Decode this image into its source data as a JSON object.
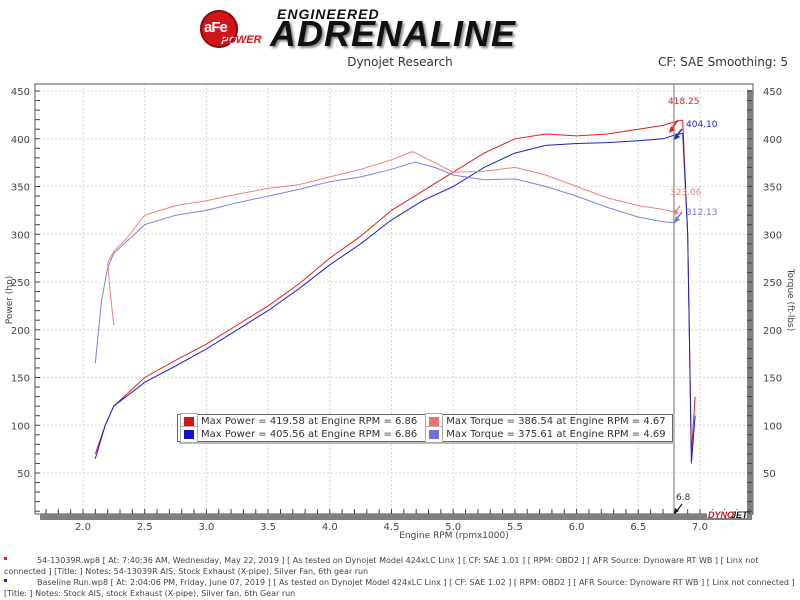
{
  "header": {
    "brand_logo": "aFe POWER",
    "brand_tag": "ENGINEERED",
    "brand_title": "ADRENALINE",
    "subtitle": "Dynojet Research",
    "correction": "CF: SAE Smoothing: 5",
    "watermark": "DYNOJET"
  },
  "colors": {
    "run1_power": "#e02020",
    "run1_torque": "#f08080",
    "run2_power": "#2020d0",
    "run2_torque": "#8080e0",
    "grid": "#d8d8d8",
    "axis_bar": "#808080"
  },
  "legend": [
    {
      "swatch": "#dd1111",
      "text": "Max Power = 419.58 at Engine RPM = 6.86"
    },
    {
      "swatch": "#f07070",
      "text": "Max Torque = 386.54 at Engine RPM = 4.67"
    },
    {
      "swatch": "#1111cc",
      "text": "Max Power = 405.56 at Engine RPM = 6.86"
    },
    {
      "swatch": "#7070dd",
      "text": "Max Torque = 375.61 at Engine RPM = 4.69"
    }
  ],
  "annotations": {
    "peak_power_run1": "418.25",
    "peak_power_run2": "404.10",
    "torque_at_cursor_run1": "323.06",
    "torque_at_cursor_run2": "312.13",
    "cursor_rpm": "6.8"
  },
  "footer": [
    {
      "color": "#e02020",
      "text": "54-13039R.wp8 [ At: 7:40:36 AM, Wednesday, May 22, 2019 ] [ As tested on Dynojet Model 424xLC Linx ] [ CF: SAE 1.01 ] [ RPM: OBD2 ] [ AFR Source: Dynoware RT WB ] [ Linx not connected ] [Title: ]  Notes: 54-13039R AIS, Stock Exhaust (X-pipe), Silver Fan, 6th gear run"
    },
    {
      "color": "#2020d0",
      "text": "Baseline Run.wp8 [ At: 2:04:06 PM, Friday, June 07, 2019 ] [ As tested on Dynojet Model 424xLC Linx ] [ CF: SAE 1.02 ] [ RPM: OBD2 ] [ AFR Source: Dynoware RT WB ] [ Linx not connected ] [Title: ]  Notes: Stock AIS, stock Exhaust (X-pipe), Silver fan, 6th Gear run"
    }
  ],
  "chart_data": {
    "type": "line",
    "title": "Dynojet Research",
    "subtitle": "CF: SAE Smoothing: 5",
    "xlabel": "Engine RPM (rpmx1000)",
    "ylabel": "Power (hp)",
    "y2label": "Torque (ft-lbs)",
    "xlim": [
      1.6,
      7.45
    ],
    "ylim": [
      0,
      460
    ],
    "y2lim": [
      0,
      460
    ],
    "x_ticks": [
      "2.0",
      "2.5",
      "3.0",
      "3.5",
      "4.0",
      "4.5",
      "5.0",
      "5.5",
      "6.0",
      "6.5",
      "7.0"
    ],
    "y_ticks": [
      "50",
      "100",
      "150",
      "200",
      "250",
      "300",
      "350",
      "400",
      "450"
    ],
    "grid": true,
    "legend_position": "inside-lower-center",
    "series": [
      {
        "name": "54-13039R Power (hp)",
        "axis": "left",
        "color": "#e02020",
        "x": [
          2.1,
          2.18,
          2.25,
          2.4,
          2.5,
          2.75,
          3.0,
          3.25,
          3.5,
          3.75,
          4.0,
          4.25,
          4.5,
          4.75,
          5.0,
          5.25,
          5.5,
          5.75,
          6.0,
          6.25,
          6.5,
          6.7,
          6.8,
          6.86,
          6.9,
          6.93,
          6.96
        ],
        "values": [
          70,
          100,
          120,
          138,
          150,
          168,
          185,
          205,
          225,
          248,
          275,
          298,
          325,
          345,
          365,
          385,
          400,
          405,
          403,
          405,
          410,
          414,
          418,
          419.58,
          300,
          70,
          130
        ]
      },
      {
        "name": "Baseline Power (hp)",
        "axis": "left",
        "color": "#2020d0",
        "x": [
          2.1,
          2.18,
          2.25,
          2.4,
          2.5,
          2.75,
          3.0,
          3.25,
          3.5,
          3.75,
          4.0,
          4.25,
          4.5,
          4.75,
          5.0,
          5.25,
          5.5,
          5.75,
          6.0,
          6.25,
          6.5,
          6.7,
          6.8,
          6.86,
          6.9,
          6.93,
          6.96
        ],
        "values": [
          65,
          100,
          120,
          135,
          145,
          162,
          180,
          200,
          220,
          243,
          268,
          290,
          315,
          335,
          350,
          370,
          385,
          393,
          395,
          396,
          398,
          400,
          404,
          405.56,
          300,
          60,
          110
        ]
      },
      {
        "name": "54-13039R Torque (ft-lbs)",
        "axis": "right",
        "color": "#f08080",
        "x": [
          2.25,
          2.22,
          2.2,
          2.25,
          2.35,
          2.5,
          2.75,
          3.0,
          3.25,
          3.5,
          3.75,
          4.0,
          4.25,
          4.5,
          4.67,
          4.85,
          5.0,
          5.25,
          5.5,
          5.75,
          6.0,
          6.25,
          6.5,
          6.7,
          6.8
        ],
        "values": [
          205,
          240,
          270,
          282,
          295,
          320,
          330,
          335,
          342,
          348,
          352,
          360,
          368,
          378,
          386.54,
          375,
          365,
          366,
          370,
          362,
          350,
          338,
          330,
          326,
          323.06
        ]
      },
      {
        "name": "Baseline Torque (ft-lbs)",
        "axis": "right",
        "color": "#8080e0",
        "x": [
          2.1,
          2.15,
          2.2,
          2.25,
          2.35,
          2.5,
          2.75,
          3.0,
          3.25,
          3.5,
          3.75,
          4.0,
          4.25,
          4.5,
          4.69,
          4.85,
          5.0,
          5.25,
          5.5,
          5.75,
          6.0,
          6.25,
          6.5,
          6.7,
          6.8
        ],
        "values": [
          165,
          230,
          265,
          280,
          292,
          310,
          320,
          325,
          333,
          340,
          347,
          355,
          360,
          368,
          375.61,
          370,
          362,
          357,
          358,
          350,
          340,
          328,
          318,
          313,
          312.13
        ]
      }
    ]
  }
}
